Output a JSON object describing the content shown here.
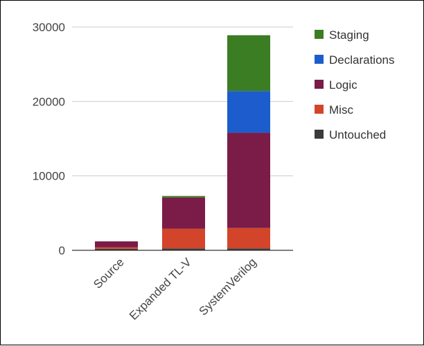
{
  "chart_data": {
    "type": "bar",
    "stacked": true,
    "categories": [
      "Source",
      "Expanded TL-V",
      "SystemVerilog"
    ],
    "series": [
      {
        "name": "Untouched",
        "color": "#3b3b3b",
        "values": [
          200,
          250,
          250
        ]
      },
      {
        "name": "Misc",
        "color": "#d2452b",
        "values": [
          200,
          2650,
          2750
        ]
      },
      {
        "name": "Logic",
        "color": "#7a1c47",
        "values": [
          800,
          4200,
          12800
        ]
      },
      {
        "name": "Declarations",
        "color": "#1d5ccc",
        "values": [
          0,
          0,
          5600
        ]
      },
      {
        "name": "Staging",
        "color": "#3b7d23",
        "values": [
          0,
          200,
          7500
        ]
      }
    ],
    "legend_order": [
      "Staging",
      "Declarations",
      "Logic",
      "Misc",
      "Untouched"
    ],
    "y_ticks": [
      "0",
      "10000",
      "20000",
      "30000"
    ],
    "ylim": [
      0,
      30000
    ],
    "xlabel": "",
    "ylabel": "",
    "title": "",
    "grid": true,
    "legend_position": "right"
  }
}
